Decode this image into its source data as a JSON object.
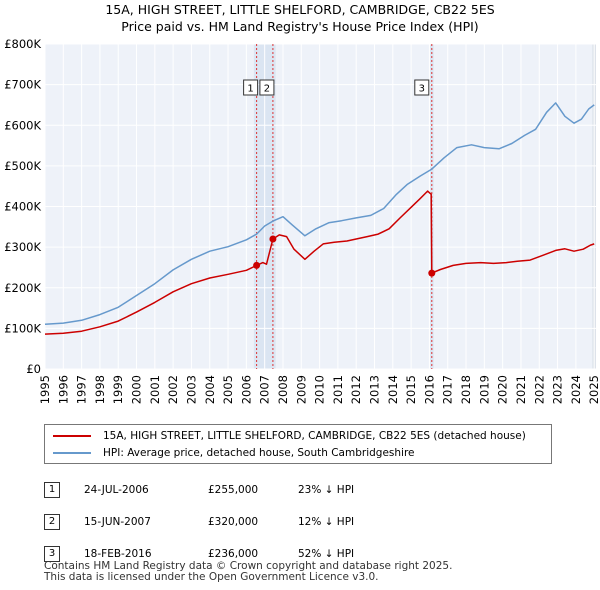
{
  "chart_data": {
    "type": "line",
    "title": "15A, HIGH STREET, LITTLE SHELFORD, CAMBRIDGE, CB22 5ES",
    "subtitle": "Price paid vs. HM Land Registry's House Price Index (HPI)",
    "xlabel": "",
    "ylabel": "",
    "xlim": [
      1995,
      2025.1
    ],
    "ylim": [
      0,
      800000
    ],
    "x_ticks": [
      "1995",
      "1996",
      "1997",
      "1998",
      "1999",
      "2000",
      "2001",
      "2002",
      "2003",
      "2004",
      "2005",
      "2006",
      "2007",
      "2008",
      "2009",
      "2010",
      "2011",
      "2012",
      "2013",
      "2014",
      "2015",
      "2016",
      "2017",
      "2018",
      "2019",
      "2020",
      "2021",
      "2022",
      "2023",
      "2024",
      "2025"
    ],
    "y_ticks": [
      {
        "value": 0,
        "label": "£0"
      },
      {
        "value": 100000,
        "label": "£100K"
      },
      {
        "value": 200000,
        "label": "£200K"
      },
      {
        "value": 300000,
        "label": "£300K"
      },
      {
        "value": 400000,
        "label": "£400K"
      },
      {
        "value": 500000,
        "label": "£500K"
      },
      {
        "value": 600000,
        "label": "£600K"
      },
      {
        "value": 700000,
        "label": "£700K"
      },
      {
        "value": 800000,
        "label": "£800K"
      }
    ],
    "grid": true,
    "series": [
      {
        "name": "15A, HIGH STREET, LITTLE SHELFORD, CAMBRIDGE, CB22 5ES (detached house)",
        "color": "#cc0000",
        "points": [
          [
            1995.0,
            86000
          ],
          [
            1996.0,
            88000
          ],
          [
            1997.0,
            93000
          ],
          [
            1998.0,
            104000
          ],
          [
            1999.0,
            118000
          ],
          [
            2000.0,
            140000
          ],
          [
            2001.0,
            164000
          ],
          [
            2002.0,
            190000
          ],
          [
            2003.0,
            210000
          ],
          [
            2004.0,
            224000
          ],
          [
            2005.0,
            233000
          ],
          [
            2006.0,
            243000
          ],
          [
            2006.56,
            255000
          ],
          [
            2006.9,
            262000
          ],
          [
            2007.1,
            258000
          ],
          [
            2007.45,
            320000
          ],
          [
            2007.8,
            330000
          ],
          [
            2008.2,
            326000
          ],
          [
            2008.6,
            295000
          ],
          [
            2009.2,
            270000
          ],
          [
            2009.7,
            290000
          ],
          [
            2010.2,
            308000
          ],
          [
            2010.8,
            312000
          ],
          [
            2011.5,
            315000
          ],
          [
            2012.0,
            320000
          ],
          [
            2012.6,
            326000
          ],
          [
            2013.2,
            332000
          ],
          [
            2013.8,
            345000
          ],
          [
            2014.4,
            372000
          ],
          [
            2015.0,
            398000
          ],
          [
            2015.5,
            420000
          ],
          [
            2015.9,
            438000
          ],
          [
            2016.1,
            430000
          ],
          [
            2016.13,
            236000
          ],
          [
            2016.6,
            245000
          ],
          [
            2017.3,
            255000
          ],
          [
            2018.0,
            260000
          ],
          [
            2018.8,
            262000
          ],
          [
            2019.5,
            260000
          ],
          [
            2020.2,
            262000
          ],
          [
            2020.8,
            265000
          ],
          [
            2021.5,
            268000
          ],
          [
            2022.2,
            280000
          ],
          [
            2022.9,
            292000
          ],
          [
            2023.4,
            296000
          ],
          [
            2023.9,
            290000
          ],
          [
            2024.4,
            295000
          ],
          [
            2024.8,
            305000
          ],
          [
            2025.0,
            308000
          ]
        ]
      },
      {
        "name": "HPI: Average price, detached house, South Cambridgeshire",
        "color": "#6699cc",
        "points": [
          [
            1995.0,
            110000
          ],
          [
            1996.0,
            113000
          ],
          [
            1997.0,
            120000
          ],
          [
            1998.0,
            134000
          ],
          [
            1999.0,
            152000
          ],
          [
            2000.0,
            181000
          ],
          [
            2001.0,
            210000
          ],
          [
            2002.0,
            244000
          ],
          [
            2003.0,
            270000
          ],
          [
            2004.0,
            290000
          ],
          [
            2005.0,
            301000
          ],
          [
            2006.0,
            318000
          ],
          [
            2006.56,
            332000
          ],
          [
            2007.0,
            352000
          ],
          [
            2007.45,
            364000
          ],
          [
            2008.0,
            375000
          ],
          [
            2008.5,
            355000
          ],
          [
            2009.2,
            328000
          ],
          [
            2009.8,
            345000
          ],
          [
            2010.5,
            360000
          ],
          [
            2011.2,
            365000
          ],
          [
            2012.0,
            372000
          ],
          [
            2012.8,
            378000
          ],
          [
            2013.5,
            395000
          ],
          [
            2014.2,
            430000
          ],
          [
            2014.8,
            455000
          ],
          [
            2015.5,
            475000
          ],
          [
            2016.13,
            492000
          ],
          [
            2016.8,
            520000
          ],
          [
            2017.5,
            545000
          ],
          [
            2018.3,
            552000
          ],
          [
            2019.0,
            545000
          ],
          [
            2019.8,
            542000
          ],
          [
            2020.5,
            555000
          ],
          [
            2021.2,
            575000
          ],
          [
            2021.8,
            590000
          ],
          [
            2022.4,
            632000
          ],
          [
            2022.9,
            655000
          ],
          [
            2023.4,
            622000
          ],
          [
            2023.9,
            605000
          ],
          [
            2024.3,
            615000
          ],
          [
            2024.7,
            640000
          ],
          [
            2025.0,
            650000
          ]
        ]
      }
    ],
    "sales": [
      {
        "id": "1",
        "x": 2006.56,
        "price": 255000
      },
      {
        "id": "2",
        "x": 2007.45,
        "price": 320000
      },
      {
        "id": "3",
        "x": 2016.13,
        "price": 236000
      }
    ]
  },
  "legend": {
    "property_label": "15A, HIGH STREET, LITTLE SHELFORD, CAMBRIDGE, CB22 5ES (detached house)",
    "hpi_label": "HPI: Average price, detached house, South Cambridgeshire"
  },
  "transactions": [
    {
      "num": "1",
      "date": "24-JUL-2006",
      "price": "£255,000",
      "delta": "23% ↓ HPI"
    },
    {
      "num": "2",
      "date": "15-JUN-2007",
      "price": "£320,000",
      "delta": "12% ↓ HPI"
    },
    {
      "num": "3",
      "date": "18-FEB-2016",
      "price": "£236,000",
      "delta": "52% ↓ HPI"
    }
  ],
  "footer": {
    "line1": "Contains HM Land Registry data © Crown copyright and database right 2025.",
    "line2": "This data is licensed under the Open Government Licence v3.0."
  }
}
